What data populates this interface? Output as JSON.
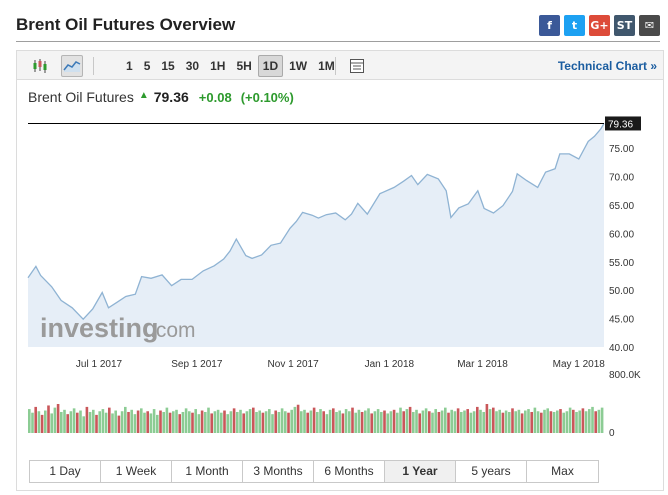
{
  "page": {
    "title": "Brent Oil Futures Overview"
  },
  "share": [
    {
      "name": "facebook-icon",
      "glyph": "f",
      "color": "#3b5998"
    },
    {
      "name": "twitter-icon",
      "glyph": "t",
      "color": "#1da1f2"
    },
    {
      "name": "google-plus-icon",
      "glyph": "G+",
      "color": "#dd4b39"
    },
    {
      "name": "stocktwits-icon",
      "glyph": "ST",
      "color": "#40576d"
    },
    {
      "name": "email-icon",
      "glyph": "✉",
      "color": "#4a4a4a"
    }
  ],
  "toolbar": {
    "intervals": [
      "1",
      "5",
      "15",
      "30",
      "1H",
      "5H",
      "1D",
      "1W",
      "1M"
    ],
    "active_interval": "1D",
    "technical_link": "Technical Chart »"
  },
  "quote": {
    "name": "Brent Oil Futures",
    "direction": "up",
    "price": "79.36",
    "change": "+0.08",
    "change_pct": "(+0.10%)"
  },
  "watermark": {
    "brand": "investing",
    "suffix": ".com"
  },
  "chart_data": {
    "type": "area",
    "x_tick_labels": [
      "Jul 1 2017",
      "Sep 1 2017",
      "Nov 1 2017",
      "Jan 1 2018",
      "Mar 1 2018",
      "May 1 2018"
    ],
    "x_ticks": [
      "2017-07-01",
      "2017-09-01",
      "2017-11-01",
      "2018-01-01",
      "2018-03-01",
      "2018-05-01"
    ],
    "y_tick_labels": [
      "75.00",
      "70.00",
      "65.00",
      "60.00",
      "55.00",
      "50.00",
      "45.00",
      "40.00"
    ],
    "ylim": [
      40,
      80.5
    ],
    "xlim": [
      "2017-05-17",
      "2018-05-17"
    ],
    "last_value_label": "79.36",
    "last_value": 79.36,
    "colors": {
      "line": "#8fb3d3",
      "fill": "#e6eef7",
      "last_line": "#000000",
      "up": "#8ccc94",
      "down": "#c9575a"
    },
    "price_series": [
      [
        "2017-05-17",
        52.2
      ],
      [
        "2017-05-22",
        54.2
      ],
      [
        "2017-05-25",
        52.6
      ],
      [
        "2017-06-01",
        50.6
      ],
      [
        "2017-06-07",
        48.2
      ],
      [
        "2017-06-14",
        46.9
      ],
      [
        "2017-06-21",
        44.9
      ],
      [
        "2017-06-27",
        46.7
      ],
      [
        "2017-07-03",
        49.6
      ],
      [
        "2017-07-07",
        46.9
      ],
      [
        "2017-07-12",
        47.8
      ],
      [
        "2017-07-18",
        48.9
      ],
      [
        "2017-07-24",
        49.3
      ],
      [
        "2017-07-28",
        52.4
      ],
      [
        "2017-08-03",
        52.1
      ],
      [
        "2017-08-10",
        52.7
      ],
      [
        "2017-08-16",
        50.8
      ],
      [
        "2017-08-22",
        51.9
      ],
      [
        "2017-08-29",
        51.9
      ],
      [
        "2017-09-05",
        53.4
      ],
      [
        "2017-09-12",
        54.3
      ],
      [
        "2017-09-18",
        55.5
      ],
      [
        "2017-09-22",
        56.9
      ],
      [
        "2017-09-26",
        59.0
      ],
      [
        "2017-10-02",
        56.1
      ],
      [
        "2017-10-06",
        55.6
      ],
      [
        "2017-10-12",
        56.2
      ],
      [
        "2017-10-18",
        57.9
      ],
      [
        "2017-10-24",
        58.3
      ],
      [
        "2017-10-30",
        60.9
      ],
      [
        "2017-11-03",
        62.1
      ],
      [
        "2017-11-07",
        63.7
      ],
      [
        "2017-11-13",
        63.2
      ],
      [
        "2017-11-17",
        62.7
      ],
      [
        "2017-11-22",
        63.3
      ],
      [
        "2017-11-28",
        63.6
      ],
      [
        "2017-12-04",
        62.4
      ],
      [
        "2017-12-08",
        63.4
      ],
      [
        "2017-12-12",
        65.3
      ],
      [
        "2017-12-18",
        63.4
      ],
      [
        "2017-12-26",
        67.0
      ],
      [
        "2018-01-04",
        68.1
      ],
      [
        "2018-01-10",
        69.2
      ],
      [
        "2018-01-15",
        70.2
      ],
      [
        "2018-01-19",
        68.6
      ],
      [
        "2018-01-25",
        70.4
      ],
      [
        "2018-02-01",
        69.6
      ],
      [
        "2018-02-06",
        67.5
      ],
      [
        "2018-02-09",
        62.8
      ],
      [
        "2018-02-14",
        64.5
      ],
      [
        "2018-02-20",
        65.2
      ],
      [
        "2018-02-26",
        67.5
      ],
      [
        "2018-03-02",
        64.4
      ],
      [
        "2018-03-08",
        63.6
      ],
      [
        "2018-03-14",
        64.9
      ],
      [
        "2018-03-20",
        67.4
      ],
      [
        "2018-03-23",
        70.5
      ],
      [
        "2018-03-29",
        69.3
      ],
      [
        "2018-04-05",
        68.1
      ],
      [
        "2018-04-10",
        70.8
      ],
      [
        "2018-04-16",
        71.4
      ],
      [
        "2018-04-19",
        74.0
      ],
      [
        "2018-04-25",
        74.0
      ],
      [
        "2018-05-01",
        73.1
      ],
      [
        "2018-05-07",
        76.2
      ],
      [
        "2018-05-11",
        77.1
      ],
      [
        "2018-05-15",
        78.4
      ],
      [
        "2018-05-17",
        79.36
      ]
    ],
    "volume_axis_labels": [
      "800.0K",
      "0"
    ],
    "volume_ylim": [
      0,
      800000
    ],
    "volume": [
      [
        330,
        "u"
      ],
      [
        280,
        "u"
      ],
      [
        360,
        "d"
      ],
      [
        300,
        "u"
      ],
      [
        250,
        "d"
      ],
      [
        310,
        "u"
      ],
      [
        380,
        "d"
      ],
      [
        270,
        "u"
      ],
      [
        350,
        "u"
      ],
      [
        400,
        "d"
      ],
      [
        290,
        "u"
      ],
      [
        320,
        "u"
      ],
      [
        260,
        "d"
      ],
      [
        300,
        "u"
      ],
      [
        340,
        "u"
      ],
      [
        280,
        "d"
      ],
      [
        310,
        "u"
      ],
      [
        230,
        "u"
      ],
      [
        360,
        "d"
      ],
      [
        290,
        "u"
      ],
      [
        320,
        "u"
      ],
      [
        250,
        "d"
      ],
      [
        300,
        "u"
      ],
      [
        330,
        "u"
      ],
      [
        280,
        "u"
      ],
      [
        350,
        "d"
      ],
      [
        270,
        "u"
      ],
      [
        310,
        "u"
      ],
      [
        240,
        "d"
      ],
      [
        300,
        "u"
      ],
      [
        360,
        "u"
      ],
      [
        290,
        "d"
      ],
      [
        320,
        "u"
      ],
      [
        260,
        "u"
      ],
      [
        310,
        "d"
      ],
      [
        340,
        "u"
      ],
      [
        280,
        "u"
      ],
      [
        300,
        "d"
      ],
      [
        270,
        "u"
      ],
      [
        330,
        "u"
      ],
      [
        250,
        "u"
      ],
      [
        310,
        "d"
      ],
      [
        290,
        "u"
      ],
      [
        350,
        "u"
      ],
      [
        280,
        "d"
      ],
      [
        300,
        "u"
      ],
      [
        320,
        "u"
      ],
      [
        260,
        "d"
      ],
      [
        290,
        "u"
      ],
      [
        340,
        "u"
      ],
      [
        300,
        "u"
      ],
      [
        280,
        "d"
      ],
      [
        330,
        "u"
      ],
      [
        260,
        "u"
      ],
      [
        310,
        "d"
      ],
      [
        290,
        "u"
      ],
      [
        350,
        "u"
      ],
      [
        270,
        "d"
      ],
      [
        300,
        "u"
      ],
      [
        320,
        "u"
      ],
      [
        280,
        "u"
      ],
      [
        310,
        "d"
      ],
      [
        260,
        "u"
      ],
      [
        300,
        "u"
      ],
      [
        340,
        "d"
      ],
      [
        290,
        "u"
      ],
      [
        320,
        "u"
      ],
      [
        270,
        "d"
      ],
      [
        300,
        "u"
      ],
      [
        330,
        "u"
      ],
      [
        350,
        "d"
      ],
      [
        290,
        "u"
      ],
      [
        310,
        "u"
      ],
      [
        280,
        "d"
      ],
      [
        300,
        "u"
      ],
      [
        330,
        "u"
      ],
      [
        260,
        "u"
      ],
      [
        310,
        "d"
      ],
      [
        290,
        "u"
      ],
      [
        340,
        "u"
      ],
      [
        300,
        "u"
      ],
      [
        280,
        "d"
      ],
      [
        320,
        "u"
      ],
      [
        360,
        "u"
      ],
      [
        390,
        "d"
      ],
      [
        300,
        "u"
      ],
      [
        320,
        "u"
      ],
      [
        280,
        "d"
      ],
      [
        310,
        "u"
      ],
      [
        350,
        "d"
      ],
      [
        290,
        "u"
      ],
      [
        330,
        "u"
      ],
      [
        300,
        "d"
      ],
      [
        260,
        "u"
      ],
      [
        320,
        "u"
      ],
      [
        340,
        "d"
      ],
      [
        290,
        "u"
      ],
      [
        310,
        "u"
      ],
      [
        270,
        "d"
      ],
      [
        330,
        "u"
      ],
      [
        300,
        "u"
      ],
      [
        350,
        "d"
      ],
      [
        280,
        "u"
      ],
      [
        320,
        "u"
      ],
      [
        290,
        "d"
      ],
      [
        310,
        "u"
      ],
      [
        340,
        "u"
      ],
      [
        270,
        "d"
      ],
      [
        300,
        "u"
      ],
      [
        330,
        "u"
      ],
      [
        290,
        "u"
      ],
      [
        310,
        "d"
      ],
      [
        270,
        "u"
      ],
      [
        300,
        "u"
      ],
      [
        320,
        "d"
      ],
      [
        280,
        "u"
      ],
      [
        350,
        "u"
      ],
      [
        300,
        "d"
      ],
      [
        330,
        "u"
      ],
      [
        360,
        "d"
      ],
      [
        290,
        "u"
      ],
      [
        320,
        "u"
      ],
      [
        270,
        "d"
      ],
      [
        310,
        "u"
      ],
      [
        340,
        "u"
      ],
      [
        300,
        "d"
      ],
      [
        280,
        "u"
      ],
      [
        330,
        "u"
      ],
      [
        290,
        "d"
      ],
      [
        310,
        "u"
      ],
      [
        350,
        "u"
      ],
      [
        280,
        "d"
      ],
      [
        320,
        "u"
      ],
      [
        300,
        "u"
      ],
      [
        340,
        "d"
      ],
      [
        290,
        "u"
      ],
      [
        310,
        "u"
      ],
      [
        330,
        "d"
      ],
      [
        280,
        "u"
      ],
      [
        300,
        "u"
      ],
      [
        360,
        "d"
      ],
      [
        320,
        "u"
      ],
      [
        290,
        "u"
      ],
      [
        400,
        "d"
      ],
      [
        330,
        "u"
      ],
      [
        350,
        "d"
      ],
      [
        300,
        "u"
      ],
      [
        320,
        "u"
      ],
      [
        280,
        "d"
      ],
      [
        310,
        "u"
      ],
      [
        290,
        "u"
      ],
      [
        340,
        "d"
      ],
      [
        300,
        "u"
      ],
      [
        320,
        "u"
      ],
      [
        270,
        "d"
      ],
      [
        310,
        "u"
      ],
      [
        330,
        "u"
      ],
      [
        290,
        "d"
      ],
      [
        350,
        "u"
      ],
      [
        300,
        "u"
      ],
      [
        280,
        "d"
      ],
      [
        320,
        "u"
      ],
      [
        340,
        "u"
      ],
      [
        300,
        "d"
      ],
      [
        290,
        "u"
      ],
      [
        310,
        "u"
      ],
      [
        330,
        "d"
      ],
      [
        280,
        "u"
      ],
      [
        300,
        "u"
      ],
      [
        350,
        "u"
      ],
      [
        320,
        "d"
      ],
      [
        290,
        "u"
      ],
      [
        310,
        "u"
      ],
      [
        340,
        "d"
      ],
      [
        300,
        "u"
      ],
      [
        330,
        "u"
      ],
      [
        360,
        "u"
      ],
      [
        300,
        "d"
      ],
      [
        320,
        "u"
      ],
      [
        350,
        "u"
      ]
    ],
    "volume_units": "thousands"
  },
  "ranges": {
    "items": [
      "1 Day",
      "1 Week",
      "1 Month",
      "3 Months",
      "6 Months",
      "1 Year",
      "5 years",
      "Max"
    ],
    "active": "1 Year"
  }
}
